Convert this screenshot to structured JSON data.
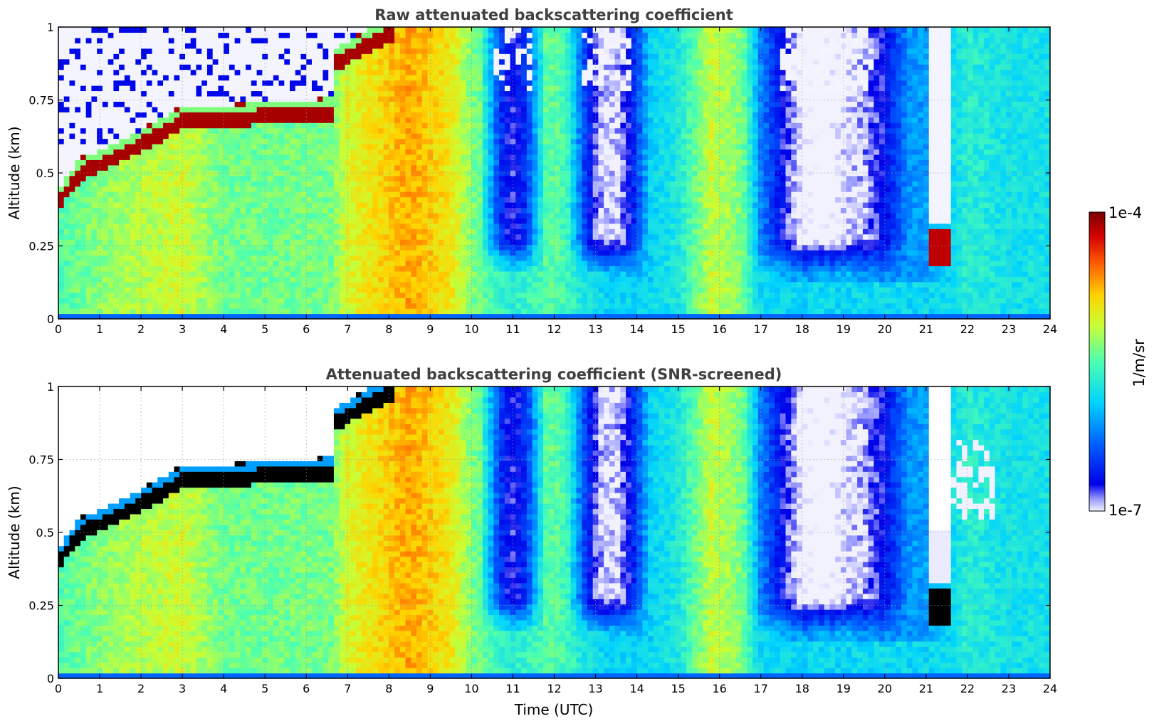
{
  "chart_data": [
    {
      "type": "heatmap",
      "title": "Raw attenuated backscattering coefficient",
      "xlabel": "",
      "ylabel": "Altitude (km)",
      "xlim": [
        0,
        24
      ],
      "ylim": [
        0,
        1
      ],
      "x_ticks": [
        "0",
        "1",
        "2",
        "3",
        "4",
        "5",
        "6",
        "7",
        "8",
        "9",
        "10",
        "11",
        "12",
        "13",
        "14",
        "15",
        "16",
        "17",
        "18",
        "19",
        "20",
        "21",
        "22",
        "23",
        "24"
      ],
      "y_ticks": [
        "0",
        "0.25",
        "0.5",
        "0.75",
        "1"
      ],
      "grid": true,
      "log_scale_color": true,
      "features": {
        "aerosol_layer_top_km": [
          [
            0,
            0.42
          ],
          [
            1,
            0.55
          ],
          [
            2,
            0.62
          ],
          [
            3,
            0.7
          ],
          [
            4,
            0.7
          ],
          [
            5,
            0.72
          ],
          [
            6,
            0.72
          ],
          [
            6.6,
            0.73
          ],
          [
            6.7,
            0.9
          ],
          [
            8,
            1.0
          ]
        ],
        "low_signal_bands": [
          [
            10.2,
            11.8
          ],
          [
            12.8,
            14.3
          ],
          [
            16.6,
            20.5
          ]
        ],
        "cloud_event": {
          "t_start": 21.0,
          "t_end": 21.6,
          "alt_km": 0.25
        }
      }
    },
    {
      "type": "heatmap",
      "title": "Attenuated backscattering coefficient (SNR-screened)",
      "xlabel": "Time (UTC)",
      "ylabel": "Altitude (km)",
      "xlim": [
        0,
        24
      ],
      "ylim": [
        0,
        1
      ],
      "x_ticks": [
        "0",
        "1",
        "2",
        "3",
        "4",
        "5",
        "6",
        "7",
        "8",
        "9",
        "10",
        "11",
        "12",
        "13",
        "14",
        "15",
        "16",
        "17",
        "18",
        "19",
        "20",
        "21",
        "22",
        "23",
        "24"
      ],
      "y_ticks": [
        "0",
        "0.25",
        "0.5",
        "0.75",
        "1"
      ],
      "grid": true,
      "log_scale_color": true
    }
  ],
  "colorbar": {
    "label": "1/m/sr",
    "max_label": "1e-4",
    "min_label": "1e-7",
    "min": 1e-07,
    "max": 0.0001,
    "colormap": "jet"
  }
}
